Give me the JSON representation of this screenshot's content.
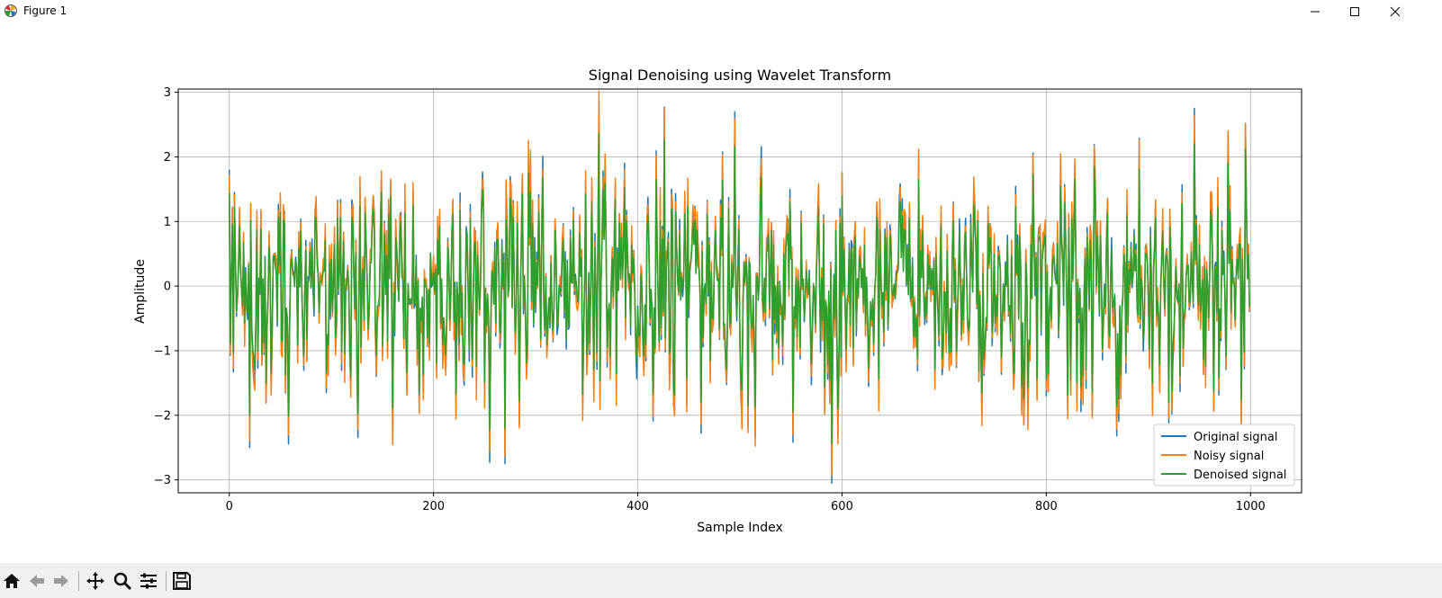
{
  "window": {
    "title": "Figure 1",
    "icons": [
      "matplotlib-icon",
      "minimize-icon",
      "maximize-icon",
      "close-icon"
    ]
  },
  "toolbar": {
    "buttons": [
      "home-icon",
      "back-icon",
      "forward-icon",
      "pan-icon",
      "zoom-icon",
      "configure-subplots-icon",
      "save-icon"
    ]
  },
  "chart_data": {
    "type": "line",
    "title": "Signal Denoising using Wavelet Transform",
    "xlabel": "Sample Index",
    "ylabel": "Amplitude",
    "xlim": [
      -50,
      1050
    ],
    "ylim": [
      -3.2,
      3.05
    ],
    "xticks": [
      0,
      200,
      400,
      600,
      800,
      1000
    ],
    "yticks": [
      -3,
      -2,
      -1,
      0,
      1,
      2,
      3
    ],
    "xtick_labels": [
      "0",
      "200",
      "400",
      "600",
      "800",
      "1000"
    ],
    "ytick_labels": [
      "−3",
      "−2",
      "−1",
      "0",
      "1",
      "2",
      "3"
    ],
    "grid": true,
    "legend_position": "lower-right",
    "n_samples": 1000,
    "series": [
      {
        "name": "Original signal",
        "color": "#1f77b4"
      },
      {
        "name": "Noisy signal",
        "color": "#ff7f0e"
      },
      {
        "name": "Denoised signal",
        "color": "#2ca02c"
      }
    ],
    "notable_points": [
      {
        "x": 0,
        "y": 1.8
      },
      {
        "x": 20,
        "y": -2.5
      },
      {
        "x": 270,
        "y": -2.75
      },
      {
        "x": 495,
        "y": 2.7
      },
      {
        "x": 590,
        "y": -3.05
      },
      {
        "x": 945,
        "y": 2.75
      },
      {
        "x": 999,
        "y": -0.4
      }
    ]
  }
}
